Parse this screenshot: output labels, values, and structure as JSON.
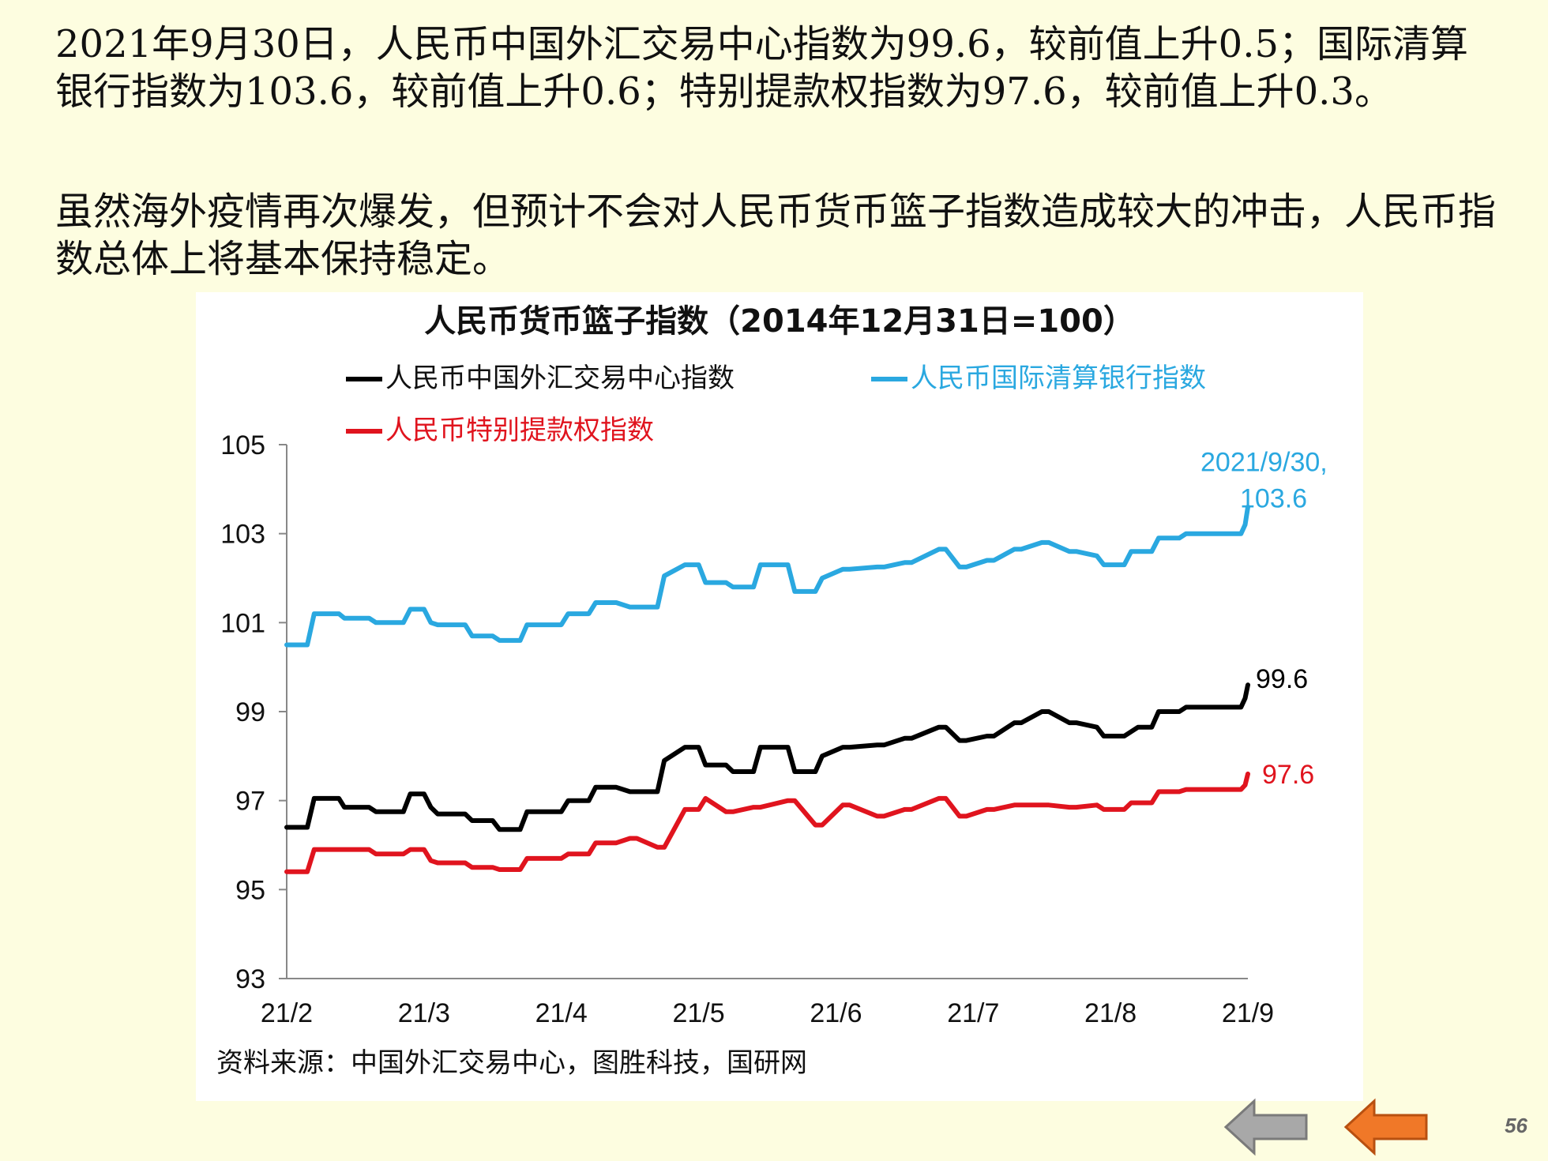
{
  "text": {
    "paragraph1": "2021年9月30日，人民币中国外汇交易中心指数为99.6，较前值上升0.5；国际清算银行指数为103.6，较前值上升0.6；特别提款权指数为97.6，较前值上升0.3。",
    "paragraph2": "虽然海外疫情再次爆发，但预计不会对人民币货币篮子指数造成较大的冲击，人民币指数总体上将基本保持稳定。",
    "source": "资料来源：中国外汇交易中心，图胜科技，国研网",
    "page_number": "56"
  },
  "colors": {
    "cfets": "#000000",
    "bis": "#2aa8e0",
    "sdr": "#e0141e",
    "nav_back": "#a8a8a8",
    "nav_prev": "#f07828"
  },
  "icons": {
    "nav_back": "left-arrow-icon",
    "nav_prev": "left-arrow-icon"
  },
  "chart_data": {
    "type": "line",
    "title": "人民币货币篮子指数（2014年12月31日=100）",
    "xlabel": "",
    "ylabel": "",
    "ylim": [
      93,
      105
    ],
    "yticks": [
      105,
      103,
      101,
      99,
      97,
      95,
      93
    ],
    "xlim": [
      0,
      7
    ],
    "categories": [
      "21/2",
      "21/3",
      "21/4",
      "21/5",
      "21/6",
      "21/7",
      "21/8",
      "21/9"
    ],
    "legend_position": "top",
    "series": [
      {
        "name": "人民币中国外汇交易中心指数",
        "color": "#000000",
        "x": [
          0,
          0.15,
          0.2,
          0.38,
          0.42,
          0.6,
          0.65,
          0.85,
          0.9,
          1.0,
          1.05,
          1.1,
          1.3,
          1.35,
          1.5,
          1.55,
          1.7,
          1.75,
          1.9,
          2.0,
          2.05,
          2.2,
          2.25,
          2.4,
          2.5,
          2.55,
          2.7,
          2.75,
          2.9,
          3.0,
          3.05,
          3.2,
          3.25,
          3.4,
          3.45,
          3.65,
          3.7,
          3.85,
          3.9,
          4.05,
          4.1,
          4.3,
          4.35,
          4.5,
          4.55,
          4.75,
          4.8,
          4.9,
          4.95,
          5.1,
          5.15,
          5.3,
          5.35,
          5.5,
          5.55,
          5.7,
          5.75,
          5.9,
          5.95,
          6.1,
          6.15,
          6.2,
          6.3,
          6.35,
          6.5,
          6.55,
          6.7,
          6.75,
          6.95,
          6.98,
          7.0
        ],
        "values": [
          96.4,
          96.4,
          97.05,
          97.05,
          96.85,
          96.85,
          96.75,
          96.75,
          97.15,
          97.15,
          96.85,
          96.7,
          96.7,
          96.55,
          96.55,
          96.35,
          96.35,
          96.75,
          96.75,
          96.75,
          97.0,
          97.0,
          97.3,
          97.3,
          97.2,
          97.2,
          97.2,
          97.9,
          98.2,
          98.2,
          97.8,
          97.8,
          97.65,
          97.65,
          98.2,
          98.2,
          97.65,
          97.65,
          98.0,
          98.2,
          98.2,
          98.25,
          98.25,
          98.4,
          98.4,
          98.65,
          98.65,
          98.35,
          98.35,
          98.45,
          98.45,
          98.75,
          98.75,
          99.0,
          99.0,
          98.75,
          98.75,
          98.65,
          98.45,
          98.45,
          98.55,
          98.65,
          98.65,
          99.0,
          99.0,
          99.1,
          99.1,
          99.1,
          99.1,
          99.3,
          99.6
        ],
        "end_label": "99.6"
      },
      {
        "name": "人民币国际清算银行指数",
        "color": "#2aa8e0",
        "x": [
          0,
          0.15,
          0.2,
          0.38,
          0.42,
          0.6,
          0.65,
          0.85,
          0.9,
          1.0,
          1.05,
          1.1,
          1.3,
          1.35,
          1.5,
          1.55,
          1.7,
          1.75,
          1.9,
          2.0,
          2.05,
          2.2,
          2.25,
          2.4,
          2.5,
          2.55,
          2.7,
          2.75,
          2.9,
          3.0,
          3.05,
          3.2,
          3.25,
          3.4,
          3.45,
          3.65,
          3.7,
          3.85,
          3.9,
          4.05,
          4.1,
          4.3,
          4.35,
          4.5,
          4.55,
          4.75,
          4.8,
          4.9,
          4.95,
          5.1,
          5.15,
          5.3,
          5.35,
          5.5,
          5.55,
          5.7,
          5.75,
          5.9,
          5.95,
          6.1,
          6.15,
          6.2,
          6.3,
          6.35,
          6.5,
          6.55,
          6.7,
          6.75,
          6.95,
          6.98,
          7.0
        ],
        "values": [
          100.5,
          100.5,
          101.2,
          101.2,
          101.1,
          101.1,
          101.0,
          101.0,
          101.3,
          101.3,
          101.0,
          100.95,
          100.95,
          100.7,
          100.7,
          100.6,
          100.6,
          100.95,
          100.95,
          100.95,
          101.2,
          101.2,
          101.45,
          101.45,
          101.35,
          101.35,
          101.35,
          102.05,
          102.3,
          102.3,
          101.9,
          101.9,
          101.8,
          101.8,
          102.3,
          102.3,
          101.7,
          101.7,
          102.0,
          102.2,
          102.2,
          102.25,
          102.25,
          102.35,
          102.35,
          102.65,
          102.65,
          102.25,
          102.25,
          102.4,
          102.4,
          102.65,
          102.65,
          102.8,
          102.8,
          102.6,
          102.6,
          102.5,
          102.3,
          102.3,
          102.6,
          102.6,
          102.6,
          102.9,
          102.9,
          103.0,
          103.0,
          103.0,
          103.0,
          103.2,
          103.6
        ],
        "end_label": "2021/9/30,",
        "end_label_line2": "103.6"
      },
      {
        "name": "人民币特别提款权指数",
        "color": "#e0141e",
        "x": [
          0,
          0.15,
          0.2,
          0.38,
          0.42,
          0.6,
          0.65,
          0.85,
          0.9,
          1.0,
          1.05,
          1.1,
          1.3,
          1.35,
          1.5,
          1.55,
          1.7,
          1.75,
          1.9,
          2.0,
          2.05,
          2.2,
          2.25,
          2.4,
          2.5,
          2.55,
          2.7,
          2.75,
          2.9,
          3.0,
          3.05,
          3.2,
          3.25,
          3.4,
          3.45,
          3.65,
          3.7,
          3.85,
          3.9,
          4.05,
          4.1,
          4.3,
          4.35,
          4.5,
          4.55,
          4.75,
          4.8,
          4.9,
          4.95,
          5.1,
          5.15,
          5.3,
          5.35,
          5.5,
          5.55,
          5.7,
          5.75,
          5.9,
          5.95,
          6.1,
          6.15,
          6.2,
          6.3,
          6.35,
          6.5,
          6.55,
          6.7,
          6.75,
          6.95,
          6.98,
          7.0
        ],
        "values": [
          95.4,
          95.4,
          95.9,
          95.9,
          95.9,
          95.9,
          95.8,
          95.8,
          95.9,
          95.9,
          95.65,
          95.6,
          95.6,
          95.5,
          95.5,
          95.45,
          95.45,
          95.7,
          95.7,
          95.7,
          95.8,
          95.8,
          96.05,
          96.05,
          96.15,
          96.15,
          95.95,
          95.95,
          96.8,
          96.8,
          97.05,
          96.75,
          96.75,
          96.85,
          96.85,
          97.0,
          97.0,
          96.45,
          96.45,
          96.9,
          96.9,
          96.65,
          96.65,
          96.8,
          96.8,
          97.05,
          97.05,
          96.65,
          96.65,
          96.8,
          96.8,
          96.9,
          96.9,
          96.9,
          96.9,
          96.85,
          96.85,
          96.9,
          96.8,
          96.8,
          96.95,
          96.95,
          96.95,
          97.2,
          97.2,
          97.25,
          97.25,
          97.25,
          97.25,
          97.35,
          97.6
        ],
        "end_label": "97.6"
      }
    ]
  }
}
